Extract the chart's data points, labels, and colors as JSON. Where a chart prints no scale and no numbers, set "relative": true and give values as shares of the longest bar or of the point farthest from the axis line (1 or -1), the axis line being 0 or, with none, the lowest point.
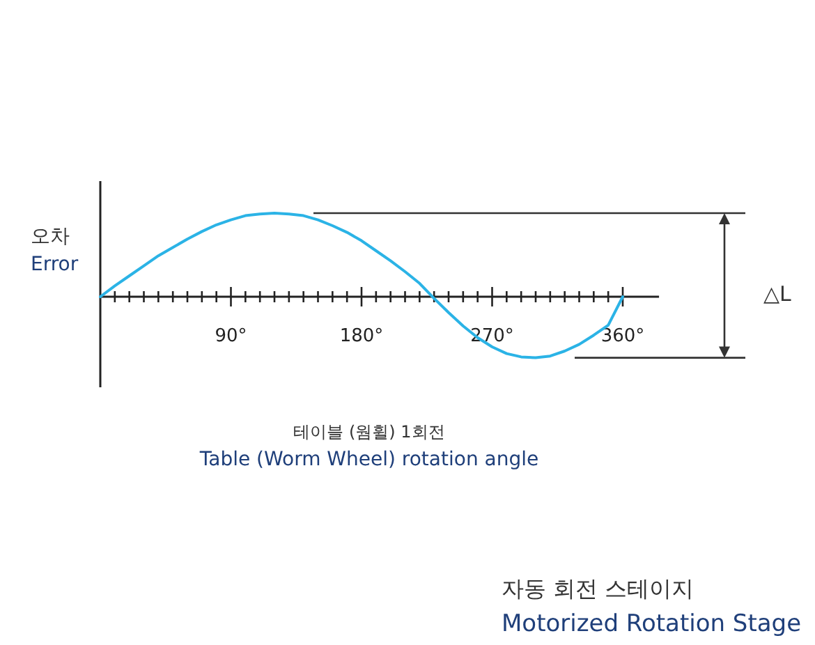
{
  "chart_data": {
    "type": "line",
    "relative": true,
    "xlabel": "테이블 (웜휠) 1회전\nTable (Worm Wheel) rotation angle",
    "ylabel": "오차\nError",
    "x": [
      0,
      10,
      20,
      30,
      40,
      50,
      60,
      70,
      80,
      90,
      100,
      110,
      120,
      130,
      140,
      150,
      160,
      170,
      180,
      190,
      200,
      210,
      220,
      230,
      240,
      250,
      260,
      270,
      280,
      290,
      300,
      310,
      320,
      330,
      340,
      350,
      360
    ],
    "series": [
      {
        "color": "#2bb3e6",
        "values": [
          0,
          0.13,
          0.25,
          0.37,
          0.49,
          0.59,
          0.69,
          0.78,
          0.86,
          0.92,
          0.97,
          0.99,
          1,
          0.99,
          0.97,
          0.92,
          0.85,
          0.77,
          0.67,
          0.55,
          0.43,
          0.3,
          0.16,
          -0.02,
          -0.19,
          -0.35,
          -0.49,
          -0.6,
          -0.68,
          -0.72,
          -0.73,
          -0.71,
          -0.65,
          -0.57,
          -0.46,
          -0.34,
          0
        ]
      }
    ],
    "xlim": [
      0,
      385
    ],
    "xticks": [
      {
        "value": 10,
        "label": null
      },
      {
        "value": 20,
        "label": null
      },
      {
        "value": 30,
        "label": null
      },
      {
        "value": 40,
        "label": null
      },
      {
        "value": 50,
        "label": null
      },
      {
        "value": 60,
        "label": null
      },
      {
        "value": 70,
        "label": null
      },
      {
        "value": 80,
        "label": null
      },
      {
        "value": 90,
        "label": "90°"
      },
      {
        "value": 100,
        "label": null
      },
      {
        "value": 110,
        "label": null
      },
      {
        "value": 120,
        "label": null
      },
      {
        "value": 130,
        "label": null
      },
      {
        "value": 140,
        "label": null
      },
      {
        "value": 150,
        "label": null
      },
      {
        "value": 160,
        "label": null
      },
      {
        "value": 170,
        "label": null
      },
      {
        "value": 180,
        "label": "180°"
      },
      {
        "value": 190,
        "label": null
      },
      {
        "value": 200,
        "label": null
      },
      {
        "value": 210,
        "label": null
      },
      {
        "value": 220,
        "label": null
      },
      {
        "value": 230,
        "label": null
      },
      {
        "value": 240,
        "label": null
      },
      {
        "value": 250,
        "label": null
      },
      {
        "value": 260,
        "label": null
      },
      {
        "value": 270,
        "label": "270°"
      },
      {
        "value": 280,
        "label": null
      },
      {
        "value": 290,
        "label": null
      },
      {
        "value": 300,
        "label": null
      },
      {
        "value": 310,
        "label": null
      },
      {
        "value": 320,
        "label": null
      },
      {
        "value": 330,
        "label": null
      },
      {
        "value": 340,
        "label": null
      },
      {
        "value": 350,
        "label": null
      },
      {
        "value": 360,
        "label": "360°"
      }
    ],
    "ref_lines": [
      {
        "axis": "y",
        "value": 1,
        "color": "#333333"
      },
      {
        "axis": "y",
        "value": -0.73,
        "color": "#333333"
      }
    ],
    "annotations": [
      "△L",
      "자동 회전 스테이지\nMotorized Rotation Stage"
    ]
  }
}
